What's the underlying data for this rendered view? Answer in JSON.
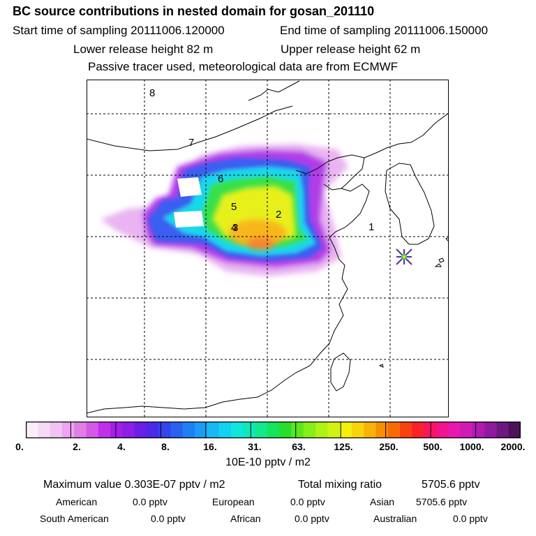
{
  "header": {
    "title": "BC  source contributions in nested domain for gosan_201110",
    "start_time": "Start time of sampling 20111006.120000",
    "end_time": "End time of sampling 20111006.150000",
    "lower_height": "Lower release height   82 m",
    "upper_height": "Upper release height   62 m",
    "tracer_note": "Passive tracer used, meteorological data are from ECMWF"
  },
  "map": {
    "labels": [
      {
        "text": "8"
      },
      {
        "text": "7"
      },
      {
        "text": "6"
      },
      {
        "text": "5"
      },
      {
        "text": "2"
      },
      {
        "text": "4"
      },
      {
        "text": "3"
      },
      {
        "text": "1"
      }
    ],
    "receptor_marker_icon": "star-marker-icon",
    "colors": {
      "grid_line": "#000000",
      "coastline": "#000000"
    }
  },
  "colorbar": {
    "ticks": [
      "0.",
      "2.",
      "4.",
      "8.",
      "16.",
      "31.",
      "63.",
      "125.",
      "250.",
      "500.",
      "1000.",
      "2000."
    ],
    "unit": "10E-10 pptv / m2",
    "colors": [
      "#fbeefb",
      "#f6daf6",
      "#f1c2f2",
      "#eba6ef",
      "#e07ee8",
      "#d45ae6",
      "#c030e8",
      "#a51ee8",
      "#8c1ee6",
      "#6a1ee6",
      "#4a2ae8",
      "#3344ee",
      "#2a62ee",
      "#1f80f2",
      "#1c9cf6",
      "#18b8f4",
      "#12d2ee",
      "#10e6e0",
      "#10e8b8",
      "#12e88c",
      "#16e45c",
      "#28de2c",
      "#5ce61c",
      "#86ee18",
      "#aef216",
      "#d4f210",
      "#f2f00c",
      "#f8d40a",
      "#f8b208",
      "#f88e06",
      "#f86a08",
      "#f8420e",
      "#f8222a",
      "#f81460",
      "#f0148e",
      "#e818b0",
      "#d01ab8",
      "#b01ab0",
      "#8e1a9c",
      "#6c1880",
      "#4a1258"
    ]
  },
  "stats": {
    "max_label": "Maximum value  0.303E-07 pptv / m2",
    "total_label": "Total mixing ratio",
    "total_value": "5705.6 pptv",
    "american_label": "American",
    "american_value": "0.0 pptv",
    "european_label": "European",
    "european_value": "0.0 pptv",
    "asian_label": "Asian",
    "asian_value": "5705.6 pptv",
    "south_american_label": "South American",
    "south_american_value": "0.0 pptv",
    "african_label": "African",
    "african_value": "0.0 pptv",
    "australian_label": "Australian",
    "australian_value": "0.0 pptv"
  }
}
